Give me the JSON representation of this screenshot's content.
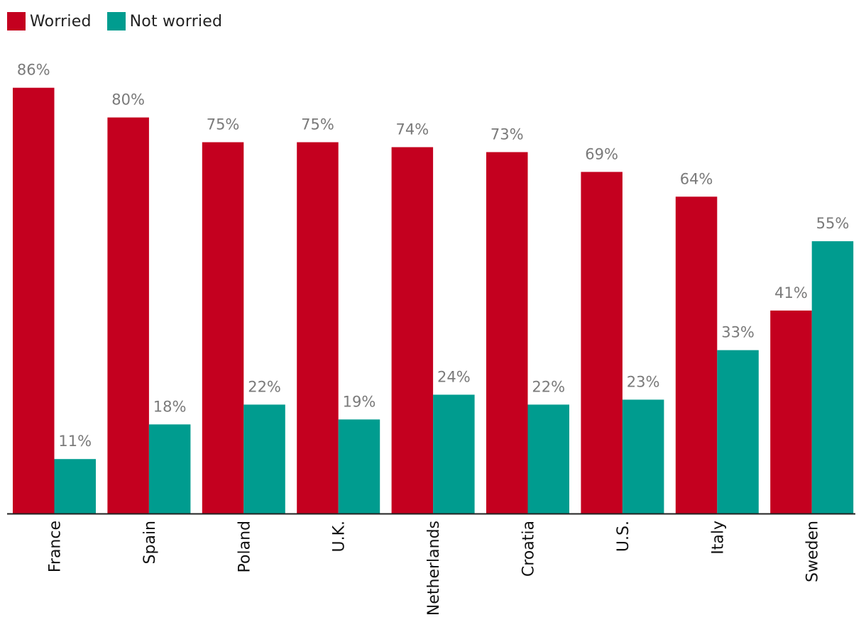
{
  "legend": {
    "items": [
      {
        "label": "Worried",
        "color": "#C4001F"
      },
      {
        "label": "Not worried",
        "color": "#009C8F"
      }
    ]
  },
  "chart_data": {
    "type": "bar",
    "title": "",
    "xlabel": "",
    "ylabel": "",
    "ylim": [
      0,
      100
    ],
    "categories": [
      "France",
      "Spain",
      "Poland",
      "U.K.",
      "Netherlands",
      "Croatia",
      "U.S.",
      "Italy",
      "Sweden"
    ],
    "series": [
      {
        "name": "Worried",
        "color": "#C4001F",
        "values": [
          86,
          80,
          75,
          75,
          74,
          73,
          69,
          64,
          41
        ],
        "labels": [
          "86%",
          "80%",
          "75%",
          "75%",
          "74%",
          "73%",
          "69%",
          "64%",
          "41%"
        ]
      },
      {
        "name": "Not worried",
        "color": "#009C8F",
        "values": [
          11,
          18,
          22,
          19,
          24,
          22,
          23,
          33,
          55
        ],
        "labels": [
          "11%",
          "18%",
          "22%",
          "19%",
          "24%",
          "22%",
          "23%",
          "33%",
          "55%"
        ]
      }
    ],
    "grid": false,
    "legend_position": "top-left",
    "data_labels": true
  }
}
